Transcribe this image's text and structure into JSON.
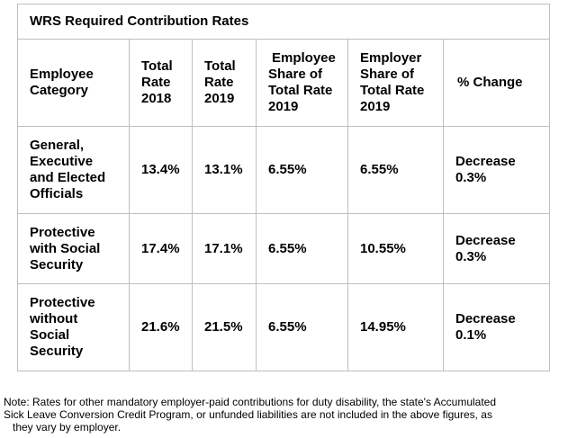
{
  "table": {
    "title": "WRS Required Contribution Rates",
    "headers": [
      [
        "Employee",
        "Category"
      ],
      [
        "Total",
        "Rate",
        "2018"
      ],
      [
        "Total",
        "Rate",
        "2019"
      ],
      [
        "Employee",
        "Share of",
        "Total Rate",
        "2019"
      ],
      [
        "Employer",
        "Share of",
        "Total Rate",
        "2019"
      ],
      [
        "% Change"
      ]
    ],
    "rows": [
      {
        "category": [
          "General,",
          "Executive",
          "and Elected",
          "Officials"
        ],
        "rate_2018": "13.4%",
        "rate_2019": "13.1%",
        "employee_share": "6.55%",
        "employer_share": "6.55%",
        "change": [
          "Decrease",
          "0.3%"
        ]
      },
      {
        "category": [
          "Protective",
          "with Social",
          "Security"
        ],
        "rate_2018": "17.4%",
        "rate_2019": "17.1%",
        "employee_share": "6.55%",
        "employer_share": "10.55%",
        "change": [
          "Decrease",
          "0.3%"
        ]
      },
      {
        "category": [
          "Protective",
          "without",
          "Social",
          "Security"
        ],
        "rate_2018": "21.6%",
        "rate_2019": "21.5%",
        "employee_share": "6.55%",
        "employer_share": "14.95%",
        "change": [
          "Decrease",
          "0.1%"
        ]
      }
    ]
  },
  "note": [
    "Note: Rates for other mandatory employer-paid contributions for duty disability, the state's Accumulated",
    "Sick Leave Conversion Credit Program, or unfunded liabilities are not included in the above figures, as",
    "they vary by employer."
  ]
}
